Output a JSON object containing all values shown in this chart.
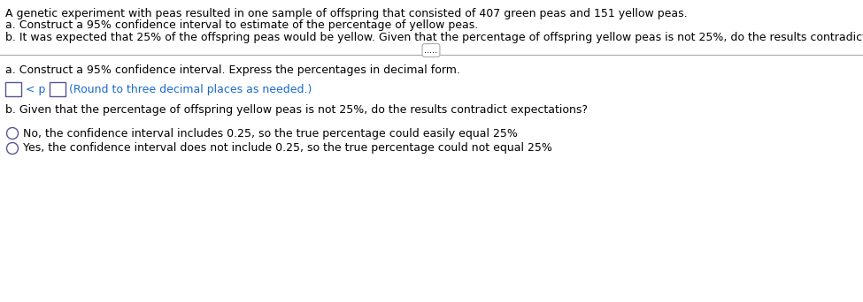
{
  "bg_color": "#ffffff",
  "text_color": "#000000",
  "blue_color": "#1a6acd",
  "line1": "A genetic experiment with peas resulted in one sample of offspring that consisted of 407 green peas and 151 yellow peas.",
  "line2": "a. Construct a 95% confidence interval to estimate of the percentage of yellow peas.",
  "line3": "b. It was expected that 25% of the offspring peas would be yellow. Given that the percentage of offspring yellow peas is not 25%, do the results contradict expectations?",
  "divider_dots": ".....",
  "section_a_label": "a. Construct a 95% confidence interval. Express the percentages in decimal form.",
  "round_note": "(Round to three decimal places as needed.)",
  "section_b_label": "b. Given that the percentage of offspring yellow peas is not 25%, do the results contradict expectations?",
  "option1": "No, the confidence interval includes 0.25, so the true percentage could easily equal 25%",
  "option2": "Yes, the confidence interval does not include 0.25, so the true percentage could not equal 25%",
  "font_size": 9.0,
  "fig_width": 9.75,
  "fig_height": 3.42,
  "dpi": 100
}
